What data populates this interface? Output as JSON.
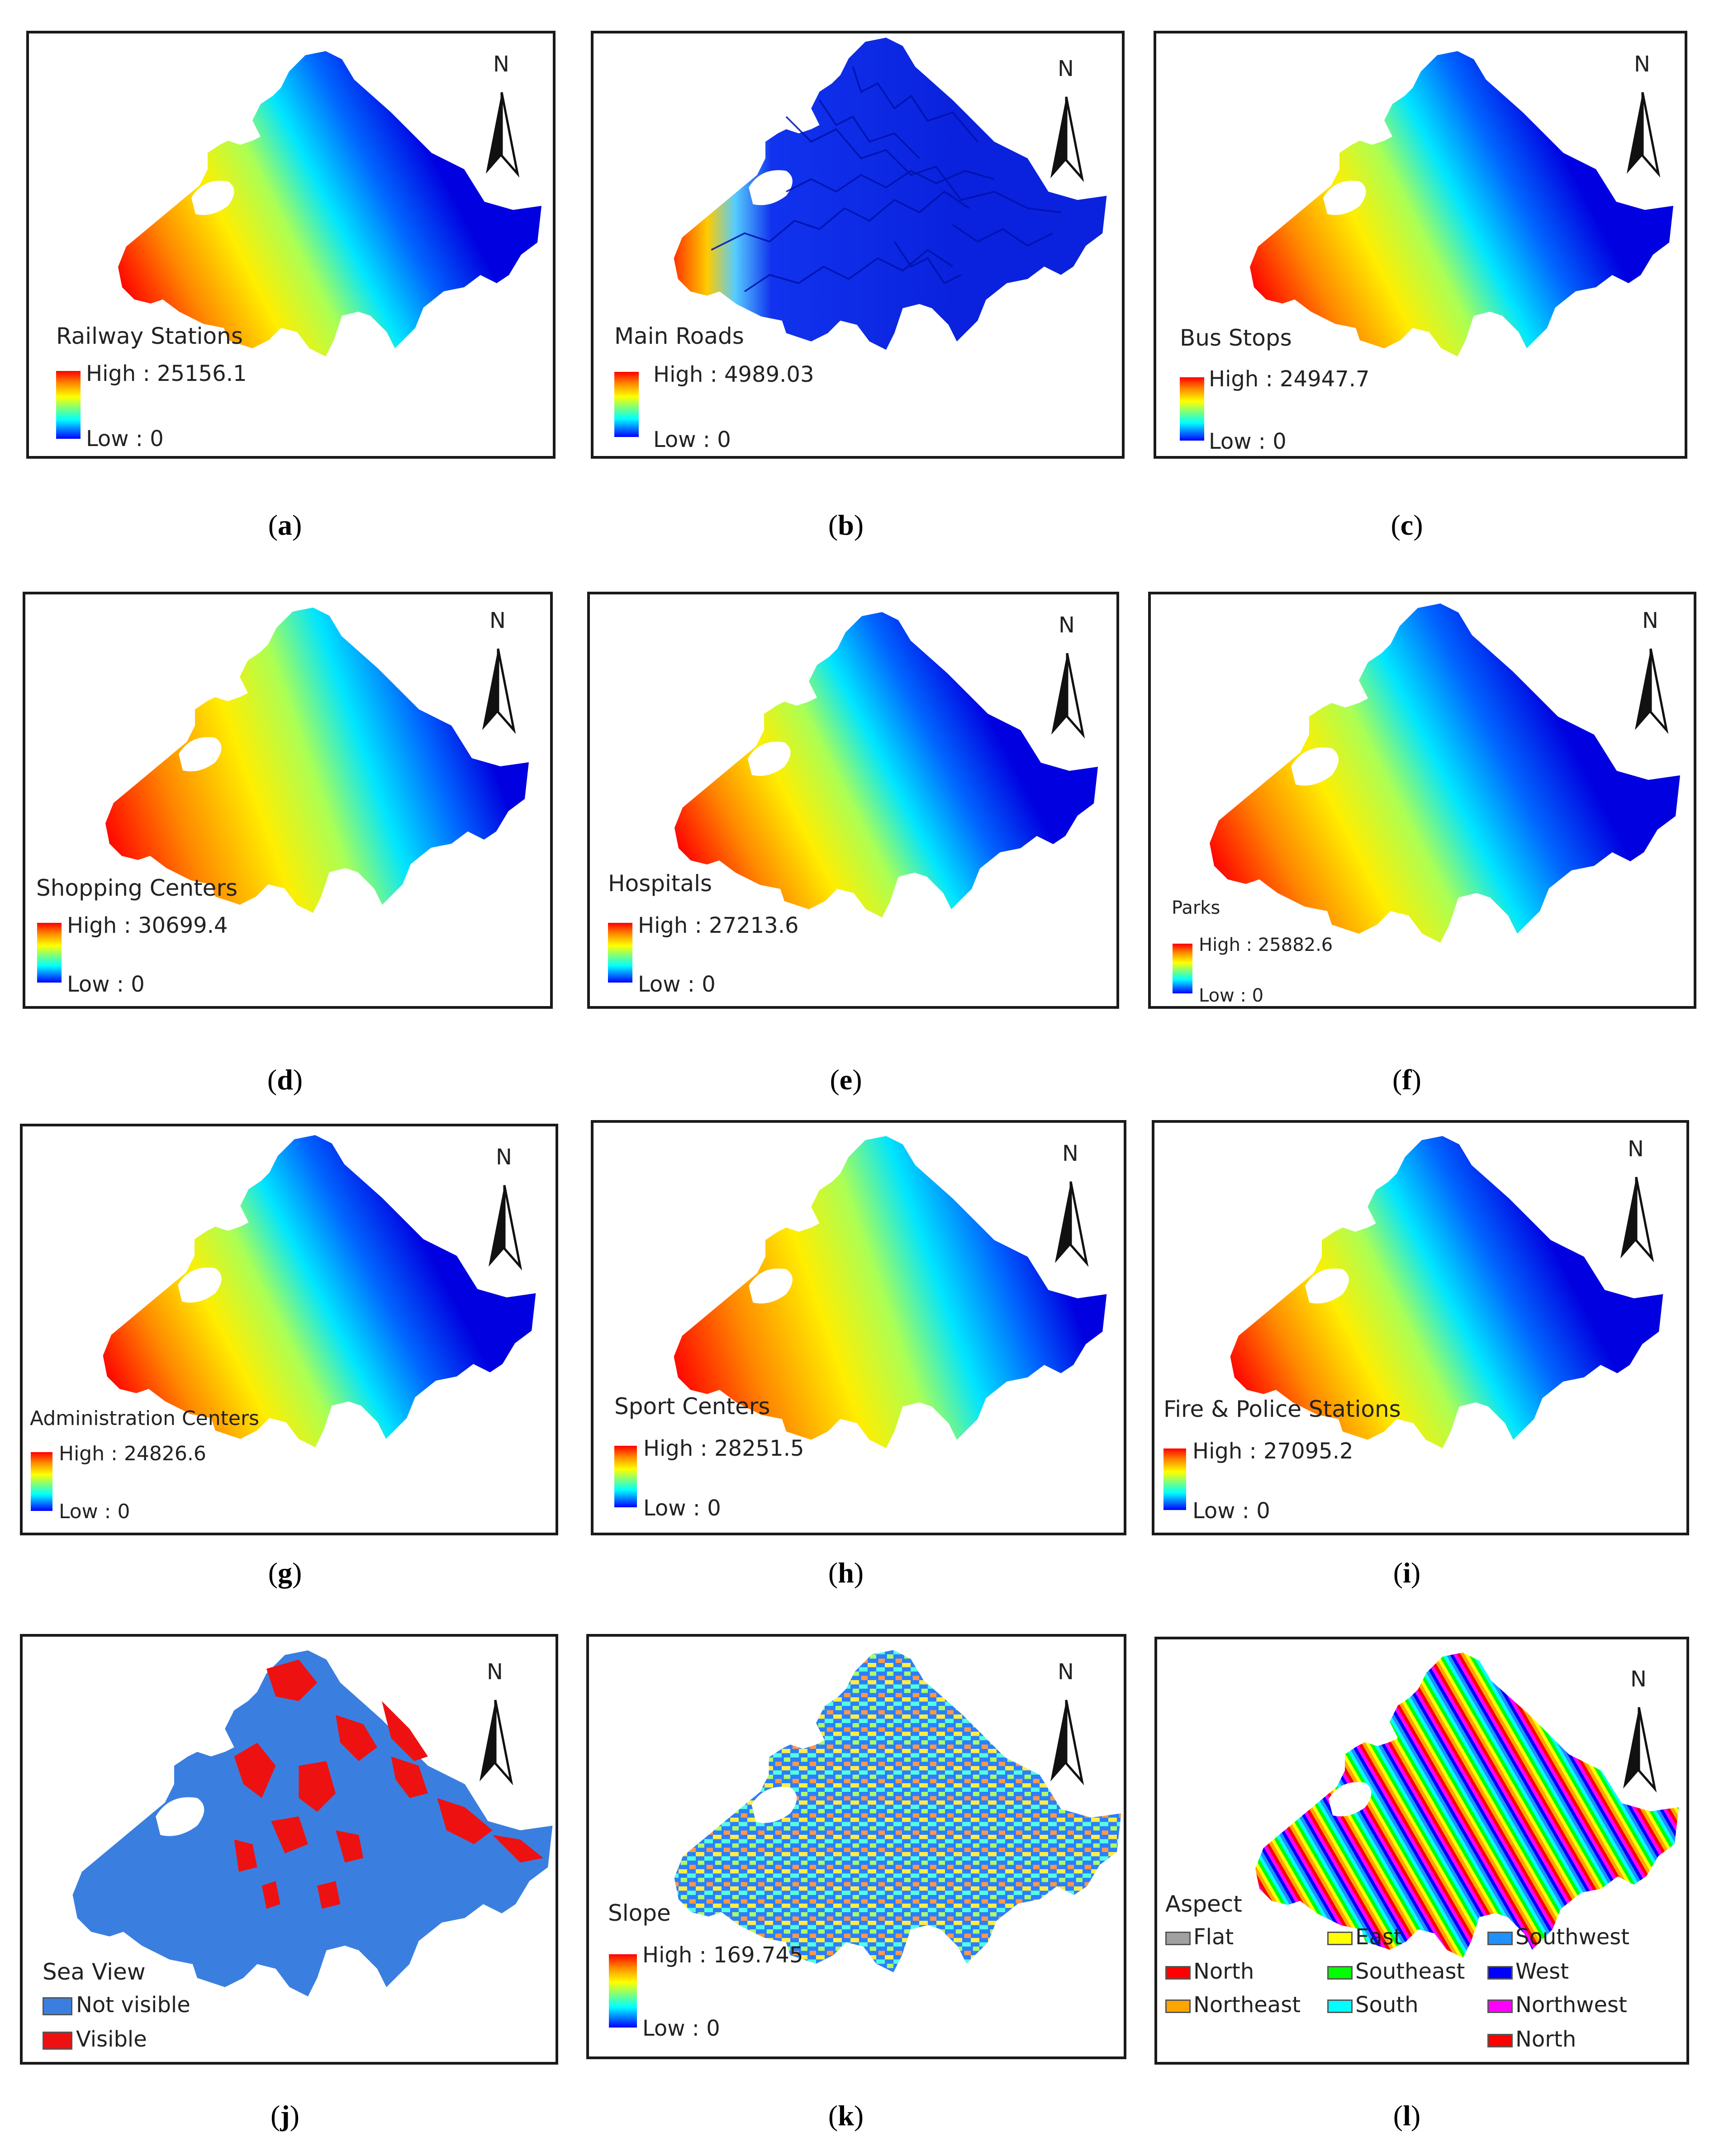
{
  "north_label": "N",
  "high_prefix": "High : ",
  "low_text": "Low : 0",
  "panels": [
    {
      "title": "Railway Stations",
      "high": "25156.1",
      "caption": "a"
    },
    {
      "title": "Main Roads",
      "high": "4989.03",
      "caption": "b"
    },
    {
      "title": "Bus Stops",
      "high": "24947.7",
      "caption": "c"
    },
    {
      "title": "Shopping Centers",
      "high": "30699.4",
      "caption": "d"
    },
    {
      "title": "Hospitals",
      "high": "27213.6",
      "caption": "e"
    },
    {
      "title": "Parks",
      "high": "25882.6",
      "caption": "f"
    },
    {
      "title": "Administration Centers",
      "high": "24826.6",
      "caption": "g"
    },
    {
      "title": "Sport Centers",
      "high": "28251.5",
      "caption": "h"
    },
    {
      "title": "Fire & Police Stations",
      "high": "27095.2",
      "caption": "i"
    },
    {
      "title": "Sea View",
      "caption": "j",
      "legend": [
        {
          "label": "Not visible",
          "color": "#3a7fe0"
        },
        {
          "label": "Visible",
          "color": "#ee1111"
        }
      ]
    },
    {
      "title": "Slope",
      "high": "169.745",
      "caption": "k"
    },
    {
      "title": "Aspect",
      "caption": "l",
      "legend": [
        {
          "label": "Flat",
          "color": "#a0a0a0"
        },
        {
          "label": "North",
          "color": "#ff0000"
        },
        {
          "label": "Northeast",
          "color": "#ffa500"
        },
        {
          "label": "East",
          "color": "#ffff00"
        },
        {
          "label": "Southeast",
          "color": "#00ff00"
        },
        {
          "label": "South",
          "color": "#00ffff"
        },
        {
          "label": "Southwest",
          "color": "#1e90ff"
        },
        {
          "label": "West",
          "color": "#0000ff"
        },
        {
          "label": "Northwest",
          "color": "#ff00ff"
        },
        {
          "label": "North",
          "color": "#ff0000"
        }
      ]
    }
  ],
  "colors": {
    "ramp": [
      "#ff0000",
      "#ff8800",
      "#ffff00",
      "#7cff7c",
      "#00ffff",
      "#0080ff",
      "#0000ff"
    ],
    "border": "#1a1a1a"
  }
}
